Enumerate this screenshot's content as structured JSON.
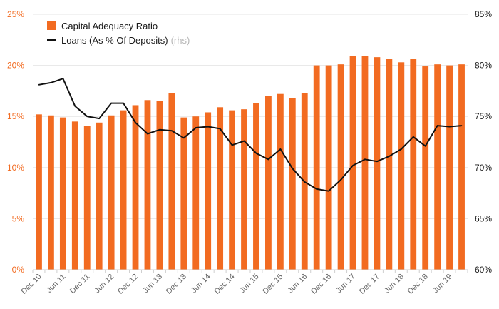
{
  "chart_data": {
    "type": "bar",
    "x": [
      "Dec 10",
      "Mar 11",
      "Jun 11",
      "Sep 11",
      "Dec 11",
      "Mar 12",
      "Jun 12",
      "Sep 12",
      "Dec 12",
      "Mar 13",
      "Jun 13",
      "Sep 13",
      "Dec 13",
      "Mar 14",
      "Jun 14",
      "Sep 14",
      "Dec 14",
      "Mar 15",
      "Jun 15",
      "Sep 15",
      "Dec 15",
      "Mar 16",
      "Jun 16",
      "Sep 16",
      "Dec 16",
      "Mar 17",
      "Jun 17",
      "Sep 17",
      "Dec 17",
      "Mar 18",
      "Jun 18",
      "Sep 18",
      "Dec 18",
      "Mar 19",
      "Jun 19",
      "Sep 19"
    ],
    "xtick_labels": [
      "Dec 10",
      "Jun 11",
      "Dec 11",
      "Jun 12",
      "Dec 12",
      "Jun 13",
      "Dec 13",
      "Jun 14",
      "Dec 14",
      "Jun 15",
      "Dec 15",
      "Jun 16",
      "Dec 16",
      "Jun 17",
      "Dec 17",
      "Jun 18",
      "Dec 18",
      "Jun 19"
    ],
    "series": [
      {
        "name": "Capital Adequacy Ratio",
        "type": "bar",
        "axis": "left",
        "color": "#f26b21",
        "values": [
          15.2,
          15.1,
          14.9,
          14.5,
          14.1,
          14.4,
          15.1,
          15.6,
          16.1,
          16.6,
          16.5,
          17.3,
          14.9,
          15.0,
          15.4,
          15.9,
          15.6,
          15.7,
          16.3,
          17.0,
          17.2,
          16.8,
          17.3,
          20.0,
          20.0,
          20.1,
          20.9,
          20.9,
          20.8,
          20.6,
          20.3,
          20.6,
          19.9,
          20.1,
          20.0,
          20.1
        ]
      },
      {
        "name": "Loans (As % Of Deposits)",
        "name_suffix": "(rhs)",
        "type": "line",
        "axis": "right",
        "color": "#111111",
        "values": [
          78.1,
          78.3,
          78.7,
          76.0,
          75.0,
          74.8,
          76.3,
          76.3,
          74.4,
          73.3,
          73.7,
          73.6,
          72.9,
          73.9,
          74.0,
          73.8,
          72.2,
          72.6,
          71.4,
          70.8,
          71.8,
          69.9,
          68.6,
          67.9,
          67.7,
          68.8,
          70.2,
          70.8,
          70.6,
          71.1,
          71.8,
          73.0,
          72.1,
          74.1,
          74.0,
          74.1
        ]
      }
    ],
    "y_left": {
      "ticks": [
        "0%",
        "5%",
        "10%",
        "15%",
        "20%",
        "25%"
      ],
      "min": 0,
      "max": 25
    },
    "y_right": {
      "ticks": [
        "60%",
        "65%",
        "70%",
        "75%",
        "80%",
        "85%"
      ],
      "min": 60,
      "max": 85
    },
    "grid": true,
    "legend": "top-left"
  }
}
